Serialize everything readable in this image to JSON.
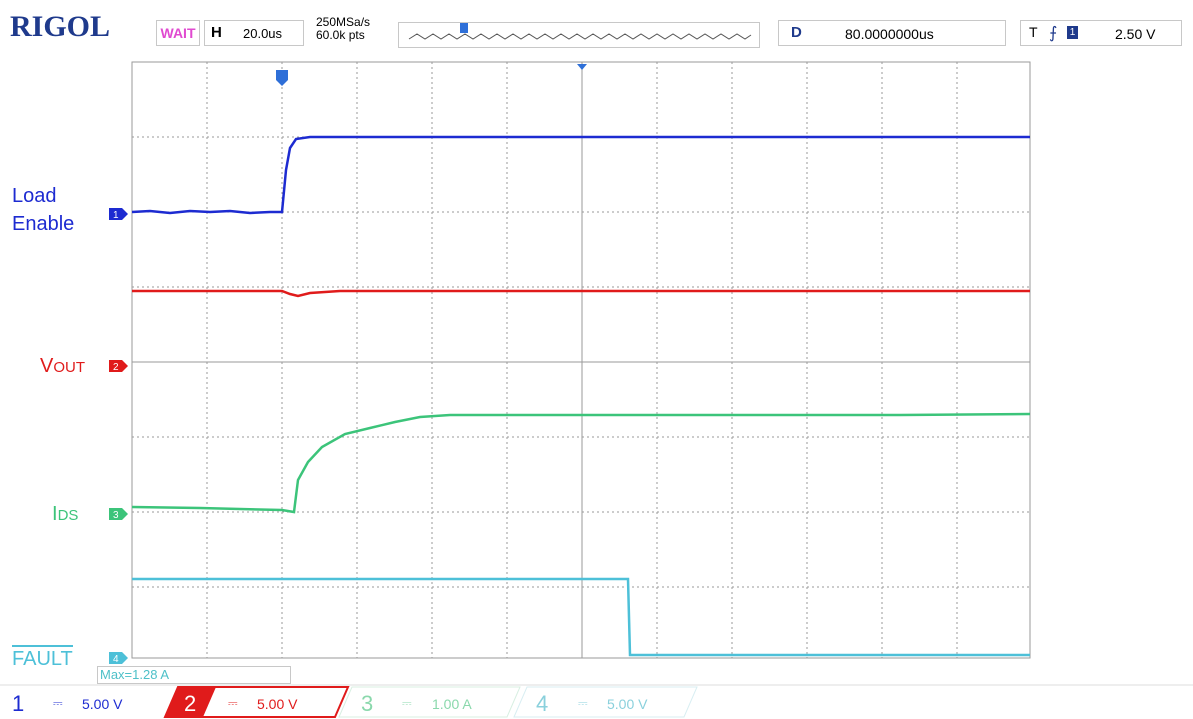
{
  "header": {
    "brand": "RIGOL",
    "status": "WAIT",
    "horizontal_label": "H",
    "horizontal_scale": "20.0us",
    "sample_rate": "250MSa/s",
    "memory_depth": "60.0k pts",
    "delay_label": "D",
    "delay_value": "80.0000000us",
    "trigger_label": "T",
    "trigger_channel": "1",
    "trigger_level": "2.50 V"
  },
  "channel_labels": {
    "ch1": "Load\nEnable",
    "ch2_main": "V",
    "ch2_sub": "OUT",
    "ch3_main": "I",
    "ch3_sub": "DS",
    "ch4": "FAULT"
  },
  "measurement": "Max=1.28 A",
  "channels": [
    {
      "number": "1",
      "scale": "5.00 V",
      "color": "#1d2bd1"
    },
    {
      "number": "2",
      "scale": "5.00 V",
      "color": "#e01b1b"
    },
    {
      "number": "3",
      "scale": "1.00 A",
      "color": "#3cc47a"
    },
    {
      "number": "4",
      "scale": "5.00 V",
      "color": "#4dc0d8"
    }
  ],
  "markers": {
    "trigger_marker": "T",
    "ch1_marker": "1",
    "ch2_marker": "2",
    "ch3_marker": "3",
    "ch4_marker": "4"
  }
}
